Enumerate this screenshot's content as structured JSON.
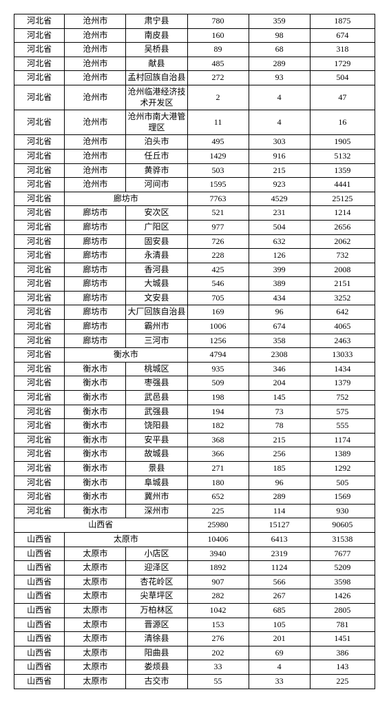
{
  "rows": [
    {
      "c": [
        "河北省",
        "沧州市",
        "肃宁县",
        "780",
        "359",
        "1875"
      ]
    },
    {
      "c": [
        "河北省",
        "沧州市",
        "南皮县",
        "160",
        "98",
        "674"
      ]
    },
    {
      "c": [
        "河北省",
        "沧州市",
        "吴桥县",
        "89",
        "68",
        "318"
      ]
    },
    {
      "c": [
        "河北省",
        "沧州市",
        "献县",
        "485",
        "289",
        "1729"
      ]
    },
    {
      "c": [
        "河北省",
        "沧州市",
        "孟村回族自治县",
        "272",
        "93",
        "504"
      ],
      "wrap": [
        2
      ]
    },
    {
      "c": [
        "河北省",
        "沧州市",
        "沧州临港经济技术开发区",
        "2",
        "4",
        "47"
      ],
      "wrap": [
        2
      ]
    },
    {
      "c": [
        "河北省",
        "沧州市",
        "沧州市南大港管理区",
        "11",
        "4",
        "16"
      ],
      "wrap": [
        2
      ]
    },
    {
      "c": [
        "河北省",
        "沧州市",
        "泊头市",
        "495",
        "303",
        "1905"
      ]
    },
    {
      "c": [
        "河北省",
        "沧州市",
        "任丘市",
        "1429",
        "916",
        "5132"
      ]
    },
    {
      "c": [
        "河北省",
        "沧州市",
        "黄骅市",
        "503",
        "215",
        "1359"
      ]
    },
    {
      "c": [
        "河北省",
        "沧州市",
        "河间市",
        "1595",
        "923",
        "4441"
      ]
    },
    {
      "span": true,
      "c": [
        "河北省",
        "廊坊市",
        "7763",
        "4529",
        "25125"
      ]
    },
    {
      "c": [
        "河北省",
        "廊坊市",
        "安次区",
        "521",
        "231",
        "1214"
      ]
    },
    {
      "c": [
        "河北省",
        "廊坊市",
        "广阳区",
        "977",
        "504",
        "2656"
      ]
    },
    {
      "c": [
        "河北省",
        "廊坊市",
        "固安县",
        "726",
        "632",
        "2062"
      ]
    },
    {
      "c": [
        "河北省",
        "廊坊市",
        "永清县",
        "228",
        "126",
        "732"
      ]
    },
    {
      "c": [
        "河北省",
        "廊坊市",
        "香河县",
        "425",
        "399",
        "2008"
      ]
    },
    {
      "c": [
        "河北省",
        "廊坊市",
        "大城县",
        "546",
        "389",
        "2151"
      ]
    },
    {
      "c": [
        "河北省",
        "廊坊市",
        "文安县",
        "705",
        "434",
        "3252"
      ]
    },
    {
      "c": [
        "河北省",
        "廊坊市",
        "大厂回族自治县",
        "169",
        "96",
        "642"
      ],
      "wrap": [
        2
      ]
    },
    {
      "c": [
        "河北省",
        "廊坊市",
        "霸州市",
        "1006",
        "674",
        "4065"
      ]
    },
    {
      "c": [
        "河北省",
        "廊坊市",
        "三河市",
        "1256",
        "358",
        "2463"
      ]
    },
    {
      "span": true,
      "c": [
        "河北省",
        "衡水市",
        "4794",
        "2308",
        "13033"
      ]
    },
    {
      "c": [
        "河北省",
        "衡水市",
        "桃城区",
        "935",
        "346",
        "1434"
      ]
    },
    {
      "c": [
        "河北省",
        "衡水市",
        "枣强县",
        "509",
        "204",
        "1379"
      ]
    },
    {
      "c": [
        "河北省",
        "衡水市",
        "武邑县",
        "198",
        "145",
        "752"
      ]
    },
    {
      "c": [
        "河北省",
        "衡水市",
        "武强县",
        "194",
        "73",
        "575"
      ]
    },
    {
      "c": [
        "河北省",
        "衡水市",
        "饶阳县",
        "182",
        "78",
        "555"
      ]
    },
    {
      "c": [
        "河北省",
        "衡水市",
        "安平县",
        "368",
        "215",
        "1174"
      ]
    },
    {
      "c": [
        "河北省",
        "衡水市",
        "故城县",
        "366",
        "256",
        "1389"
      ]
    },
    {
      "c": [
        "河北省",
        "衡水市",
        "景县",
        "271",
        "185",
        "1292"
      ]
    },
    {
      "c": [
        "河北省",
        "衡水市",
        "阜城县",
        "180",
        "96",
        "505"
      ]
    },
    {
      "c": [
        "河北省",
        "衡水市",
        "冀州市",
        "652",
        "289",
        "1569"
      ]
    },
    {
      "c": [
        "河北省",
        "衡水市",
        "深州市",
        "225",
        "114",
        "930"
      ]
    },
    {
      "span3": true,
      "c": [
        "山西省",
        "25980",
        "15127",
        "90605"
      ]
    },
    {
      "span": true,
      "c": [
        "山西省",
        "太原市",
        "10406",
        "6413",
        "31538"
      ]
    },
    {
      "c": [
        "山西省",
        "太原市",
        "小店区",
        "3940",
        "2319",
        "7677"
      ]
    },
    {
      "c": [
        "山西省",
        "太原市",
        "迎泽区",
        "1892",
        "1124",
        "5209"
      ]
    },
    {
      "c": [
        "山西省",
        "太原市",
        "杏花岭区",
        "907",
        "566",
        "3598"
      ]
    },
    {
      "c": [
        "山西省",
        "太原市",
        "尖草坪区",
        "282",
        "267",
        "1426"
      ]
    },
    {
      "c": [
        "山西省",
        "太原市",
        "万柏林区",
        "1042",
        "685",
        "2805"
      ]
    },
    {
      "c": [
        "山西省",
        "太原市",
        "晋源区",
        "153",
        "105",
        "781"
      ]
    },
    {
      "c": [
        "山西省",
        "太原市",
        "清徐县",
        "276",
        "201",
        "1451"
      ]
    },
    {
      "c": [
        "山西省",
        "太原市",
        "阳曲县",
        "202",
        "69",
        "386"
      ]
    },
    {
      "c": [
        "山西省",
        "太原市",
        "娄烦县",
        "33",
        "4",
        "143"
      ]
    },
    {
      "c": [
        "山西省",
        "太原市",
        "古交市",
        "55",
        "33",
        "225"
      ]
    }
  ]
}
